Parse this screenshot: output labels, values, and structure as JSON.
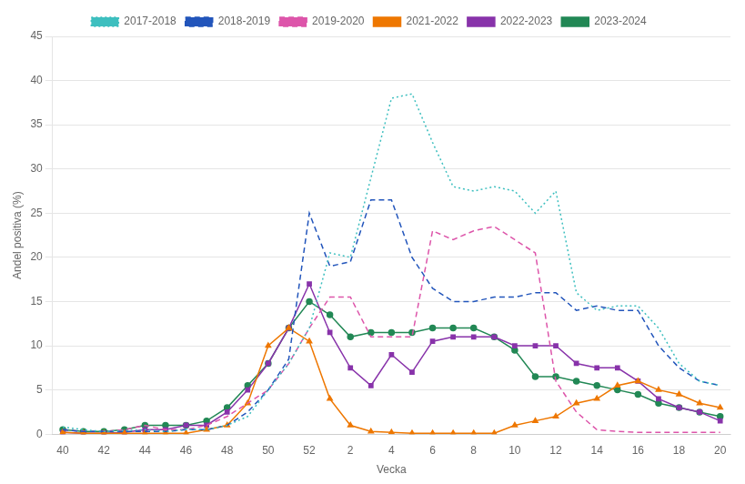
{
  "chart_data": {
    "type": "line",
    "x_label": "Vecka",
    "y_label": "Andel positiva (%)",
    "categories": [
      40,
      null,
      42,
      null,
      44,
      null,
      46,
      null,
      48,
      null,
      50,
      null,
      52,
      null,
      2,
      null,
      4,
      null,
      6,
      null,
      8,
      null,
      10,
      null,
      12,
      null,
      14,
      null,
      16,
      null,
      18,
      null,
      20
    ],
    "ylim": [
      0,
      45
    ],
    "yticks": [
      0,
      5,
      10,
      15,
      20,
      25,
      30,
      35,
      40,
      45
    ],
    "grid": true,
    "legend": "top",
    "series": [
      {
        "name": "2017-2018",
        "color": "#3dbfbf",
        "line_style": "dotted",
        "values": [
          0.8,
          0.5,
          0.3,
          0.4,
          0.5,
          0.3,
          0.5,
          0.5,
          1.0,
          2.0,
          5.0,
          8.0,
          12.0,
          20.5,
          20.0,
          29.0,
          38.0,
          38.5,
          33.0,
          28.0,
          27.5,
          28.0,
          27.5,
          25.0,
          27.5,
          16.0,
          14.0,
          14.5,
          14.5,
          12.0,
          8.0,
          6.0,
          5.5
        ]
      },
      {
        "name": "2018-2019",
        "color": "#2255bb",
        "line_style": "dashed",
        "values": [
          0.5,
          0.3,
          0.3,
          0.3,
          0.3,
          0.3,
          0.5,
          0.5,
          1.0,
          2.5,
          5.0,
          8.5,
          25.0,
          19.0,
          19.5,
          26.5,
          26.5,
          20.0,
          16.5,
          15.0,
          15.0,
          15.5,
          15.5,
          16.0,
          16.0,
          14.0,
          14.5,
          14.0,
          14.0,
          10.0,
          7.5,
          6.0,
          5.5
        ]
      },
      {
        "name": "2019-2020",
        "color": "#dd55aa",
        "line_style": "dashed",
        "values": [
          0.5,
          0.3,
          0.3,
          0.5,
          1.0,
          0.5,
          0.5,
          1.0,
          2.0,
          3.5,
          5.0,
          8.0,
          12.0,
          15.5,
          15.5,
          11.0,
          11.0,
          11.0,
          23.0,
          22.0,
          23.0,
          23.5,
          22.0,
          20.5,
          6.0,
          2.5,
          0.5,
          0.3,
          0.2,
          0.2,
          0.2,
          0.2,
          0.2
        ]
      },
      {
        "name": "2021-2022",
        "color": "#ee7700",
        "line_style": "solid",
        "marker": "triangle",
        "values": [
          0.2,
          0.1,
          0.1,
          0.1,
          0.1,
          0.1,
          0.1,
          0.5,
          1.0,
          3.5,
          10.0,
          12.0,
          10.5,
          4.0,
          1.0,
          0.3,
          0.2,
          0.1,
          0.1,
          0.1,
          0.1,
          0.1,
          1.0,
          1.5,
          2.0,
          3.5,
          4.0,
          5.5,
          6.0,
          5.0,
          4.5,
          3.5,
          3.0
        ]
      },
      {
        "name": "2022-2023",
        "color": "#8833aa",
        "line_style": "solid",
        "marker": "square",
        "values": [
          0.2,
          0.1,
          0.1,
          0.2,
          0.5,
          0.5,
          1.0,
          1.0,
          2.5,
          5.0,
          8.0,
          12.0,
          17.0,
          11.5,
          7.5,
          5.5,
          9.0,
          7.0,
          10.5,
          11.0,
          11.0,
          11.0,
          10.0,
          10.0,
          10.0,
          8.0,
          7.5,
          7.5,
          6.0,
          4.0,
          3.0,
          2.5,
          1.5
        ]
      },
      {
        "name": "2023-2024",
        "color": "#228855",
        "line_style": "solid",
        "marker": "circle",
        "values": [
          0.5,
          0.3,
          0.3,
          0.5,
          1.0,
          1.0,
          1.0,
          1.5,
          3.0,
          5.5,
          8.0,
          12.0,
          15.0,
          13.5,
          11.0,
          11.5,
          11.5,
          11.5,
          12.0,
          12.0,
          12.0,
          11.0,
          9.5,
          6.5,
          6.5,
          6.0,
          5.5,
          5.0,
          4.5,
          3.5,
          3.0,
          2.5,
          2.0
        ]
      }
    ]
  }
}
